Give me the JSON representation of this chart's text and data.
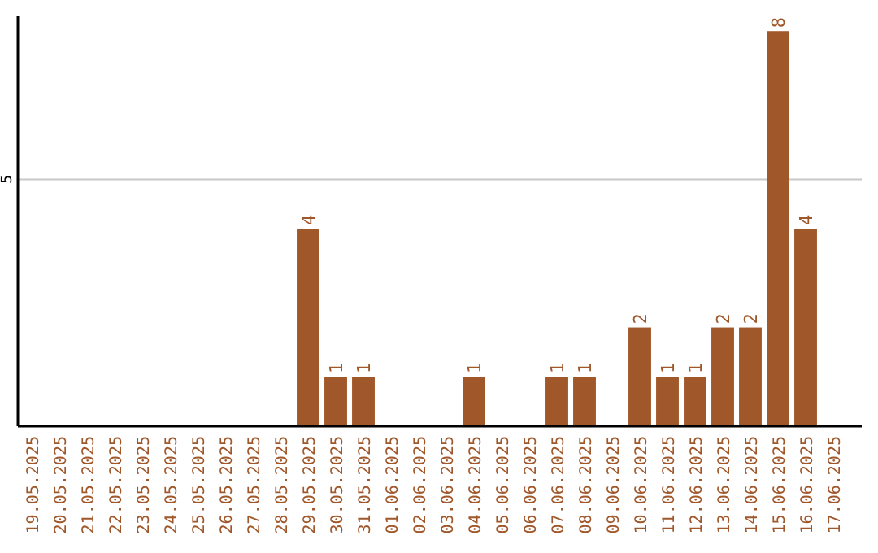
{
  "chart_data": {
    "type": "bar",
    "categories": [
      "19.05.2025",
      "20.05.2025",
      "21.05.2025",
      "22.05.2025",
      "23.05.2025",
      "24.05.2025",
      "25.05.2025",
      "26.05.2025",
      "27.05.2025",
      "28.05.2025",
      "29.05.2025",
      "30.05.2025",
      "31.05.2025",
      "01.06.2025",
      "02.06.2025",
      "03.06.2025",
      "04.06.2025",
      "05.06.2025",
      "06.06.2025",
      "07.06.2025",
      "08.06.2025",
      "09.06.2025",
      "10.06.2025",
      "11.06.2025",
      "12.06.2025",
      "13.06.2025",
      "14.06.2025",
      "15.06.2025",
      "16.06.2025",
      "17.06.2025"
    ],
    "values": [
      0,
      0,
      0,
      0,
      0,
      0,
      0,
      0,
      0,
      0,
      4,
      1,
      1,
      0,
      0,
      0,
      1,
      0,
      0,
      1,
      1,
      0,
      2,
      1,
      1,
      2,
      2,
      8,
      4,
      0
    ],
    "value_labels": [
      null,
      null,
      null,
      null,
      null,
      null,
      null,
      null,
      null,
      null,
      "4",
      "1",
      "1",
      null,
      null,
      null,
      "1",
      null,
      null,
      "1",
      "1",
      null,
      "2",
      "1",
      "1",
      "2",
      "2",
      "8",
      "4",
      null
    ],
    "color": "#a0572a",
    "ylim": [
      0,
      8.3
    ],
    "yticks": [
      5
    ],
    "grid": "y"
  }
}
